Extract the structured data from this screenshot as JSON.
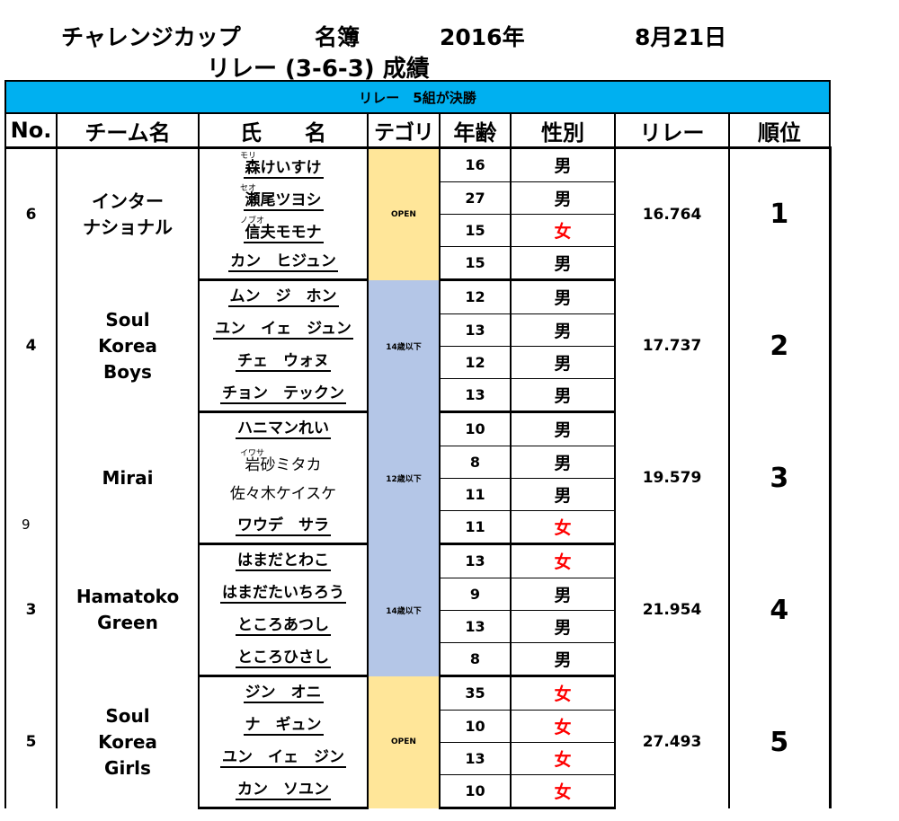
{
  "header": {
    "title": "チャレンジカップ",
    "subtitle": "名簿",
    "year": "2016年",
    "date": "8月21日",
    "event": "リレー (3-6-3) 成績"
  },
  "banner": "リレー　5組が決勝",
  "columns": {
    "no": "No.",
    "team": "チーム名",
    "name": "氏　　名",
    "category": "テゴリ",
    "age": "年齢",
    "sex": "性別",
    "relay": "リレー",
    "rank": "順位"
  },
  "groups": [
    {
      "no": "6",
      "team": "インター\nナショナル",
      "category": "OPEN",
      "relay": "16.764",
      "rank": "1",
      "members": [
        {
          "ruby": "モリ",
          "name": "森けいすけ",
          "age": "16",
          "sex": "男"
        },
        {
          "ruby": "セオ",
          "name": "瀬尾ツヨシ",
          "age": "27",
          "sex": "男"
        },
        {
          "ruby": "ノブオ",
          "name": "信夫モモナ",
          "age": "15",
          "sex": "女"
        },
        {
          "ruby": "",
          "name": "カン　ヒジュン",
          "age": "15",
          "sex": "男"
        }
      ]
    },
    {
      "no": "4",
      "team": "Soul\nKorea\nBoys",
      "category": "14歳以下",
      "relay": "17.737",
      "rank": "2",
      "members": [
        {
          "ruby": "",
          "name": "ムン　ジ　ホン",
          "age": "12",
          "sex": "男"
        },
        {
          "ruby": "",
          "name": "ユン　イェ　ジュン",
          "age": "13",
          "sex": "男"
        },
        {
          "ruby": "",
          "name": "チェ　ウォヌ",
          "age": "12",
          "sex": "男"
        },
        {
          "ruby": "",
          "name": "チョン　テックン",
          "age": "13",
          "sex": "男"
        }
      ]
    },
    {
      "no": "",
      "side_no": "9",
      "team": "Mirai",
      "category": "12歳以下",
      "relay": "19.579",
      "rank": "3",
      "members": [
        {
          "ruby": "",
          "name": "ハニマンれい",
          "age": "10",
          "sex": "男"
        },
        {
          "ruby": "イワサ",
          "name": "岩砂ミタカ",
          "age": "8",
          "sex": "男"
        },
        {
          "ruby": "",
          "name": "佐々木ケイスケ",
          "age": "11",
          "sex": "男"
        },
        {
          "ruby": "",
          "name": "ワウデ　サラ",
          "age": "11",
          "sex": "女"
        }
      ]
    },
    {
      "no": "3",
      "team": "Hamatoko\nGreen",
      "category": "14歳以下",
      "relay": "21.954",
      "rank": "4",
      "members": [
        {
          "ruby": "",
          "name": "はまだとわこ",
          "age": "13",
          "sex": "女"
        },
        {
          "ruby": "",
          "name": "はまだたいちろう",
          "age": "9",
          "sex": "男"
        },
        {
          "ruby": "",
          "name": "ところあつし",
          "age": "13",
          "sex": "男"
        },
        {
          "ruby": "",
          "name": "ところひさし",
          "age": "8",
          "sex": "男"
        }
      ]
    },
    {
      "no": "5",
      "team": "Soul\nKorea\nGirls",
      "category": "OPEN",
      "relay": "27.493",
      "rank": "5",
      "members": [
        {
          "ruby": "",
          "name": "ジン　オニ",
          "age": "35",
          "sex": "女"
        },
        {
          "ruby": "",
          "name": "ナ　ギュン",
          "age": "10",
          "sex": "女"
        },
        {
          "ruby": "",
          "name": "ユン　イェ　ジン",
          "age": "13",
          "sex": "女"
        },
        {
          "ruby": "",
          "name": "カン　ソユン",
          "age": "10",
          "sex": "女"
        }
      ]
    }
  ]
}
